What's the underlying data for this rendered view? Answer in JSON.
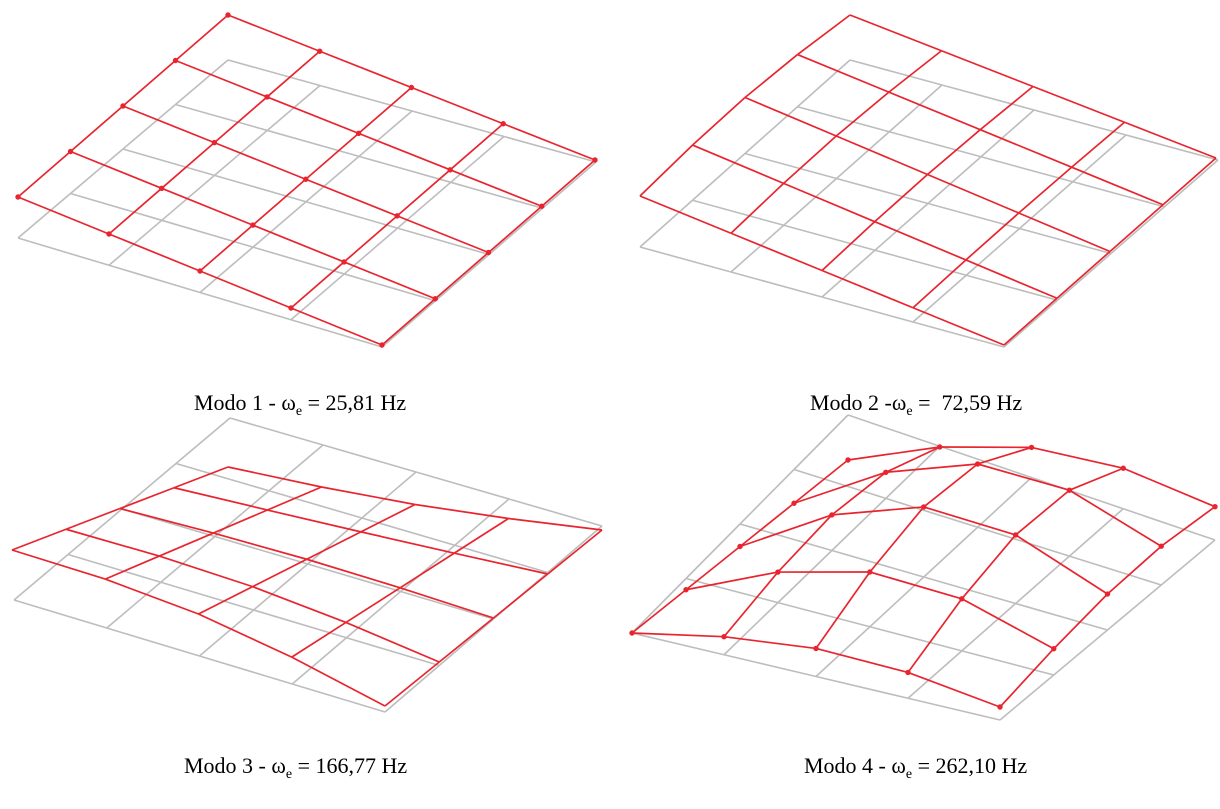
{
  "colors": {
    "undeformed_mesh": "#bdbdbd",
    "mode_shape": "#e8252e",
    "node": "#e8252e"
  },
  "modes": [
    {
      "id": "modo-1",
      "label": "Modo 1 - ",
      "omega": "ω",
      "omega_sub": "e",
      "eq": " = 25,81 Hz",
      "node_dots": true
    },
    {
      "id": "modo-2",
      "label": "Modo 2 -",
      "omega": "ω",
      "omega_sub": "e",
      "eq": " =  72,59 Hz",
      "node_dots": false
    },
    {
      "id": "modo-3",
      "label": "Modo 3 - ",
      "omega": "ω",
      "omega_sub": "e",
      "eq": " = 166,77 Hz",
      "node_dots": false
    },
    {
      "id": "modo-4",
      "label": "Modo 4 - ",
      "omega": "ω",
      "omega_sub": "e",
      "eq": " = 262,10 Hz",
      "node_dots": true
    }
  ]
}
